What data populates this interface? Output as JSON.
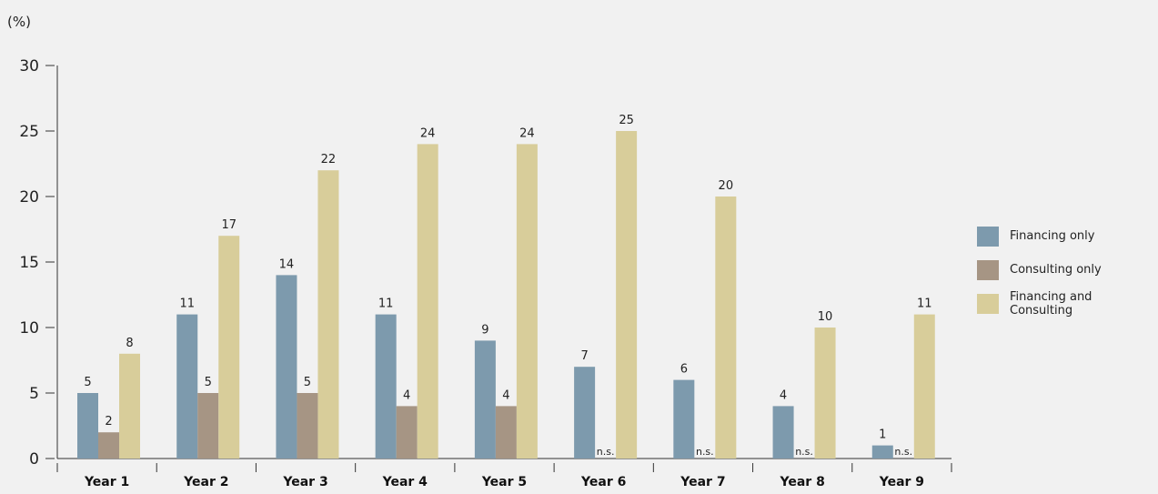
{
  "chart_data": {
    "type": "bar",
    "unit_label": "(%)",
    "ylim": [
      0,
      30
    ],
    "yticks": [
      0,
      5,
      10,
      15,
      20,
      25,
      30
    ],
    "grid": false,
    "legend_position": "right",
    "categories": [
      "Year 1",
      "Year 2",
      "Year 3",
      "Year 4",
      "Year 5",
      "Year 6",
      "Year 7",
      "Year 8",
      "Year 9"
    ],
    "series": [
      {
        "name": "Financing only",
        "color": "#7d9aad",
        "values": [
          5,
          11,
          14,
          11,
          9,
          7,
          6,
          4,
          1
        ],
        "labels": [
          "5",
          "11",
          "14",
          "11",
          "9",
          "7",
          "6",
          "4",
          "1"
        ]
      },
      {
        "name": "Consulting only",
        "color": "#a69584",
        "values": [
          2,
          5,
          5,
          4,
          4,
          null,
          null,
          null,
          null
        ],
        "labels": [
          "2",
          "5",
          "5",
          "4",
          "4",
          "n.s.",
          "n.s.",
          "n.s.",
          "n.s."
        ]
      },
      {
        "name": "Financing and Consulting",
        "color": "#d8cd9a",
        "values": [
          8,
          17,
          22,
          24,
          24,
          25,
          20,
          10,
          11
        ],
        "labels": [
          "8",
          "17",
          "22",
          "24",
          "24",
          "25",
          "20",
          "10",
          "11"
        ]
      }
    ]
  }
}
